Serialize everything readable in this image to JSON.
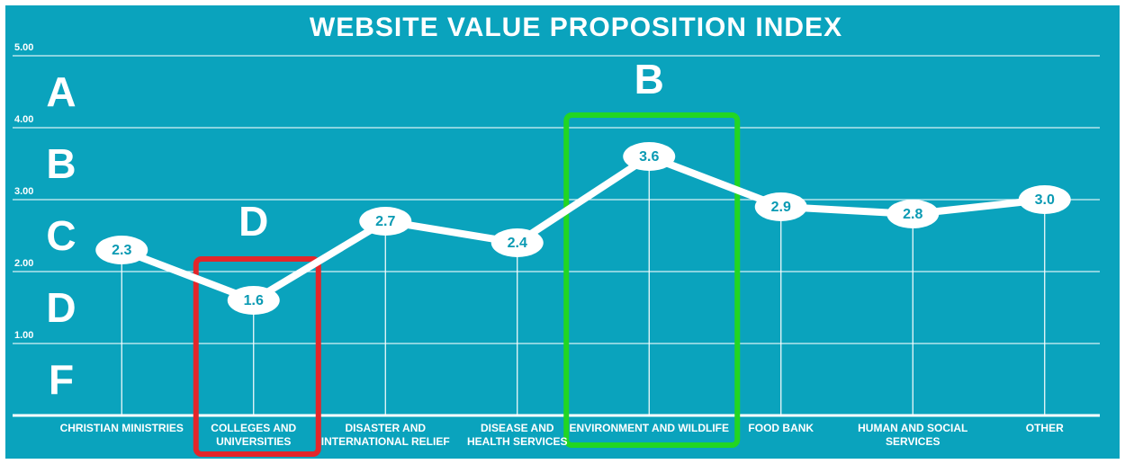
{
  "chart_data": {
    "type": "line",
    "title": "WEBSITE VALUE PROPOSITION INDEX",
    "categories": [
      "CHRISTIAN MINISTRIES",
      "COLLEGES AND\nUNIVERSITIES",
      "DISASTER AND\nINTERNATIONAL RELIEF",
      "DISEASE AND\nHEALTH SERVICES",
      "ENVIRONMENT AND WILDLIFE",
      "FOOD BANK",
      "HUMAN AND SOCIAL\nSERVICES",
      "OTHER"
    ],
    "values": [
      2.3,
      1.6,
      2.7,
      2.4,
      3.6,
      2.9,
      2.8,
      3.0
    ],
    "value_labels": [
      "2.3",
      "1.6",
      "2.7",
      "2.4",
      "3.6",
      "2.9",
      "2.8",
      "3.0"
    ],
    "color": "#ffffff",
    "ylim": [
      0,
      5
    ],
    "yticks": [
      {
        "value": 1,
        "label": "1.00"
      },
      {
        "value": 2,
        "label": "2.00"
      },
      {
        "value": 3,
        "label": "3.00"
      },
      {
        "value": 4,
        "label": "4.00"
      },
      {
        "value": 5,
        "label": "5.00"
      }
    ],
    "grid": true,
    "grades": [
      "A",
      "B",
      "C",
      "D",
      "F"
    ],
    "highlights": [
      {
        "label": "D",
        "color": "#e3262a"
      },
      {
        "label": "B",
        "color": "#22d622"
      }
    ]
  }
}
